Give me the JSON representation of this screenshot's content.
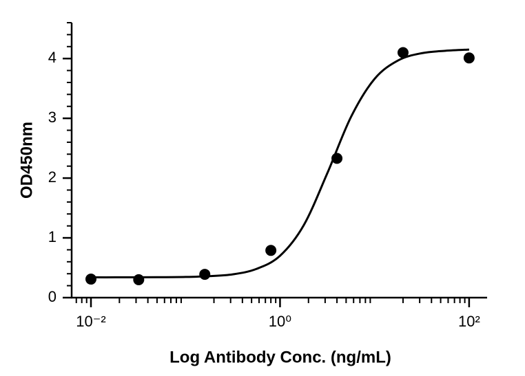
{
  "chart_data": {
    "type": "scatter",
    "x_label": "Log Antibody Conc. (ng/mL)",
    "y_label": "OD450nm",
    "x_scale": "log",
    "xlim": [
      0.00625,
      155
    ],
    "ylim": [
      0,
      4.6
    ],
    "xticks": [
      {
        "value": 0.01,
        "label": "10⁻²"
      },
      {
        "value": 1,
        "label": "10⁰"
      },
      {
        "value": 100,
        "label": "10²"
      }
    ],
    "yticks": [
      0,
      1,
      2,
      3,
      4
    ],
    "minor_ticks": true,
    "series": [
      {
        "type": "scatter",
        "color": "#000000",
        "x": [
          0.01,
          0.032,
          0.16,
          0.8,
          4,
          20,
          100
        ],
        "values": [
          0.31,
          0.3,
          0.39,
          0.79,
          2.33,
          4.1,
          4.01
        ]
      },
      {
        "type": "line",
        "color": "#000000",
        "x": [
          0.01,
          0.0178,
          0.0316,
          0.0562,
          0.1,
          0.178,
          0.316,
          0.562,
          1,
          1.78,
          3.16,
          5.62,
          10,
          17.8,
          31.6,
          56.2,
          100
        ],
        "values": [
          0.34,
          0.34,
          0.341,
          0.342,
          0.346,
          0.36,
          0.39,
          0.48,
          0.7,
          1.21,
          2.08,
          3.02,
          3.66,
          3.97,
          4.09,
          4.13,
          4.15
        ]
      }
    ]
  }
}
